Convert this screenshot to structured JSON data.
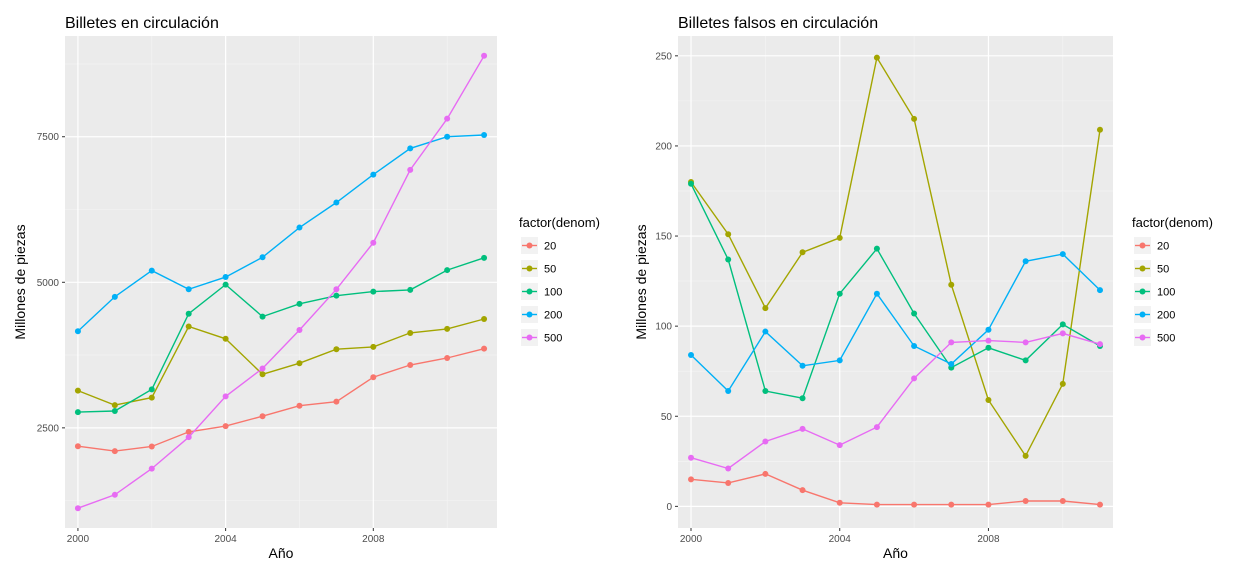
{
  "chart_data": [
    {
      "type": "line",
      "title": "Billetes en circulación",
      "xlabel": "Año",
      "ylabel": "Millones de piezas",
      "x": [
        2000,
        2001,
        2002,
        2003,
        2004,
        2005,
        2006,
        2007,
        2008,
        2009,
        2010,
        2011
      ],
      "xlim": [
        1999.65,
        2011.35
      ],
      "ylim": [
        780,
        9230
      ],
      "xticks": [
        2000,
        2004,
        2008
      ],
      "yticks": [
        2500,
        5000,
        7500
      ],
      "grid": true,
      "legend": {
        "title": "factor(denom)",
        "position": "right"
      },
      "series": [
        {
          "name": "20",
          "color": "#F8766D",
          "values": [
            2185,
            2100,
            2180,
            2430,
            2530,
            2700,
            2880,
            2950,
            3370,
            3580,
            3700,
            3860
          ]
        },
        {
          "name": "50",
          "color": "#A3A500",
          "values": [
            3140,
            2890,
            3020,
            4240,
            4030,
            3420,
            3610,
            3850,
            3890,
            4130,
            4200,
            4370
          ]
        },
        {
          "name": "100",
          "color": "#00BF7D",
          "values": [
            2770,
            2790,
            3160,
            4460,
            4960,
            4410,
            4630,
            4770,
            4840,
            4870,
            5210,
            5420
          ]
        },
        {
          "name": "200",
          "color": "#00B0F6",
          "values": [
            4160,
            4750,
            5200,
            4880,
            5090,
            5430,
            5940,
            6370,
            6850,
            7300,
            7500,
            7530
          ]
        },
        {
          "name": "500",
          "color": "#E76BF3",
          "values": [
            1120,
            1350,
            1800,
            2340,
            3040,
            3520,
            4180,
            4880,
            5680,
            6930,
            7810,
            8890
          ]
        }
      ]
    },
    {
      "type": "line",
      "title": "Billetes falsos en circulación",
      "xlabel": "Año",
      "ylabel": "Millones de piezas",
      "x": [
        2000,
        2001,
        2002,
        2003,
        2004,
        2005,
        2006,
        2007,
        2008,
        2009,
        2010,
        2011
      ],
      "xlim": [
        1999.65,
        2011.35
      ],
      "ylim": [
        -12,
        261
      ],
      "xticks": [
        2000,
        2004,
        2008
      ],
      "yticks": [
        0,
        50,
        100,
        150,
        200,
        250
      ],
      "grid": true,
      "legend": {
        "title": "factor(denom)",
        "position": "right"
      },
      "series": [
        {
          "name": "20",
          "color": "#F8766D",
          "values": [
            15,
            13,
            18,
            9,
            2,
            1,
            1,
            1,
            1,
            3,
            3,
            1
          ]
        },
        {
          "name": "50",
          "color": "#A3A500",
          "values": [
            180,
            151,
            110,
            141,
            149,
            249,
            215,
            123,
            59,
            28,
            68,
            209
          ]
        },
        {
          "name": "100",
          "color": "#00BF7D",
          "values": [
            179,
            137,
            64,
            60,
            118,
            143,
            107,
            77,
            88,
            81,
            101,
            89
          ]
        },
        {
          "name": "200",
          "color": "#00B0F6",
          "values": [
            84,
            64,
            97,
            78,
            81,
            118,
            89,
            79,
            98,
            136,
            140,
            120
          ]
        },
        {
          "name": "500",
          "color": "#E76BF3",
          "values": [
            27,
            21,
            36,
            43,
            34,
            44,
            71,
            91,
            92,
            91,
            96,
            90
          ]
        }
      ]
    }
  ]
}
